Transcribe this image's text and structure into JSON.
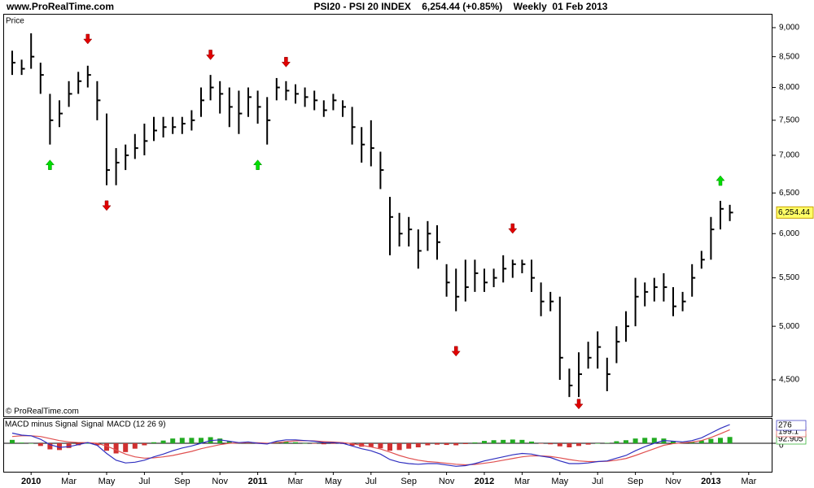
{
  "header": {
    "site": "www.ProRealTime.com",
    "title": "PSI20 - PSI 20 INDEX    6,254.44 (+0.85%)    Weekly  01 Feb 2013",
    "copyright": "© ProRealTime.com"
  },
  "chart_data": [
    {
      "type": "ohlc",
      "label": "Price",
      "log_scale": true,
      "color": "#000000",
      "categories": [
        null,
        null,
        "2010",
        null,
        null,
        null,
        "Mar",
        null,
        null,
        null,
        "May",
        null,
        null,
        null,
        "Jul",
        null,
        null,
        null,
        "Sep",
        null,
        null,
        null,
        "Nov",
        null,
        null,
        null,
        "2011",
        null,
        null,
        null,
        "Mar",
        null,
        null,
        null,
        "May",
        null,
        null,
        null,
        "Jul",
        null,
        null,
        null,
        "Sep",
        null,
        null,
        null,
        "Nov",
        null,
        null,
        null,
        "2012",
        null,
        null,
        null,
        "Mar",
        null,
        null,
        null,
        "May",
        null,
        null,
        null,
        "Jul",
        null,
        null,
        null,
        "Sep",
        null,
        null,
        null,
        "Nov",
        null,
        null,
        null,
        "2013",
        null,
        null,
        null,
        "Mar",
        null,
        null
      ],
      "high": [
        8600,
        8450,
        8900,
        8400,
        7900,
        7800,
        8100,
        8250,
        8350,
        8100,
        7600,
        7100,
        7150,
        7300,
        7450,
        7550,
        7550,
        7550,
        7550,
        7650,
        8000,
        8200,
        8100,
        8000,
        7950,
        8000,
        7950,
        7850,
        8150,
        8100,
        8050,
        8000,
        7950,
        7800,
        7900,
        7800,
        7700,
        7400,
        7500,
        7050,
        6450,
        6250,
        6200,
        6050,
        6150,
        6100,
        5650,
        5600,
        5700,
        5700,
        5600,
        5600,
        5750,
        5700,
        5700,
        5700,
        5450,
        5350,
        5300,
        4600,
        4750,
        4850,
        4950,
        4700,
        5000,
        5150,
        5500,
        5450,
        5500,
        5550,
        5400,
        5350,
        5650,
        5800,
        6200,
        6400,
        6350,
        null,
        null,
        null,
        null
      ],
      "low": [
        8200,
        8200,
        8300,
        7900,
        7150,
        7400,
        7700,
        7900,
        8000,
        7500,
        6600,
        6600,
        6800,
        6950,
        7000,
        7200,
        7250,
        7300,
        7300,
        7350,
        7550,
        7800,
        7600,
        7400,
        7300,
        7550,
        7450,
        7150,
        7800,
        7800,
        7750,
        7700,
        7650,
        7550,
        7650,
        7550,
        7150,
        6900,
        6850,
        6550,
        5750,
        5850,
        5850,
        5600,
        5800,
        5700,
        5300,
        5150,
        5250,
        5350,
        5350,
        5400,
        5450,
        5500,
        5550,
        5350,
        5100,
        5150,
        4500,
        4350,
        4350,
        4600,
        4600,
        4400,
        4650,
        4850,
        5000,
        5200,
        5250,
        5250,
        5100,
        5150,
        5300,
        5600,
        5700,
        6050,
        6150,
        null,
        null,
        null,
        null
      ],
      "close": [
        8400,
        8300,
        8500,
        8200,
        7500,
        7600,
        7900,
        8100,
        8200,
        7800,
        6800,
        6900,
        7000,
        7100,
        7200,
        7350,
        7400,
        7400,
        7450,
        7500,
        7800,
        8000,
        7900,
        7700,
        7600,
        7850,
        7700,
        7500,
        8000,
        7950,
        7900,
        7850,
        7800,
        7650,
        7800,
        7700,
        7400,
        7150,
        7100,
        6800,
        6200,
        6000,
        6050,
        5800,
        6000,
        5900,
        5450,
        5300,
        5400,
        5550,
        5450,
        5500,
        5600,
        5650,
        5650,
        5500,
        5250,
        5250,
        4700,
        4450,
        4550,
        4700,
        4800,
        4550,
        4850,
        5000,
        5300,
        5350,
        5400,
        5400,
        5200,
        5250,
        5500,
        5700,
        6050,
        6300,
        6254.44,
        null,
        null,
        null,
        null
      ],
      "sell_signals": {
        "color": "#e00000",
        "values": [
          null,
          null,
          null,
          null,
          null,
          null,
          null,
          null,
          8800,
          null,
          6340,
          null,
          null,
          null,
          null,
          null,
          null,
          null,
          null,
          null,
          null,
          8530,
          null,
          null,
          null,
          null,
          null,
          null,
          null,
          8410,
          null,
          null,
          null,
          null,
          null,
          null,
          null,
          null,
          null,
          null,
          null,
          null,
          null,
          null,
          null,
          null,
          null,
          4760,
          null,
          null,
          null,
          null,
          null,
          6060,
          null,
          null,
          null,
          null,
          null,
          null,
          4290,
          null,
          null,
          null,
          null,
          null,
          null,
          null,
          null,
          null,
          null,
          null,
          null,
          null,
          null,
          null,
          null,
          null,
          null,
          null,
          null
        ]
      },
      "buy_signals": {
        "color": "#00dd00",
        "values": [
          null,
          null,
          null,
          null,
          6870,
          null,
          null,
          null,
          null,
          null,
          null,
          null,
          null,
          null,
          null,
          null,
          null,
          null,
          null,
          null,
          null,
          null,
          null,
          null,
          null,
          null,
          6870,
          null,
          null,
          null,
          null,
          null,
          null,
          null,
          null,
          null,
          null,
          null,
          null,
          null,
          null,
          null,
          null,
          null,
          null,
          null,
          null,
          null,
          null,
          null,
          null,
          null,
          null,
          null,
          null,
          null,
          null,
          null,
          null,
          null,
          null,
          null,
          null,
          null,
          null,
          null,
          null,
          null,
          null,
          null,
          null,
          null,
          null,
          null,
          null,
          6660,
          null,
          null,
          null,
          null,
          null
        ]
      },
      "ylim": [
        4187,
        9233
      ],
      "yticks": [
        {
          "value": 4500,
          "label": "4,500"
        },
        {
          "value": 5000,
          "label": "5,000"
        },
        {
          "value": 5500,
          "label": "5,500"
        },
        {
          "value": 6000,
          "label": "6,000"
        },
        {
          "value": 6500,
          "label": "6,500"
        },
        {
          "value": 7000,
          "label": "7,000"
        },
        {
          "value": 7500,
          "label": "7,500"
        },
        {
          "value": 8000,
          "label": "8,000"
        },
        {
          "value": 8500,
          "label": "8,500"
        },
        {
          "value": 9000,
          "label": "9,000"
        }
      ],
      "last_price": {
        "value": 6254.44,
        "label": "6,254.44"
      }
    },
    {
      "type": "macd",
      "ylim": [
        -420,
        360
      ],
      "yticks": [
        0
      ],
      "series": [
        {
          "name": "MACD minus Signal",
          "color": "#22aa22",
          "kind": "histogram",
          "last_label": "92.905",
          "values": [
            50,
            10,
            0,
            -40,
            -90,
            -100,
            -70,
            -30,
            0,
            -30,
            -110,
            -150,
            -130,
            -80,
            -30,
            15,
            40,
            70,
            80,
            80,
            80,
            90,
            70,
            30,
            5,
            10,
            -8,
            -10,
            20,
            25,
            15,
            2,
            -5,
            -15,
            -8,
            -10,
            -35,
            -50,
            -55,
            -75,
            -110,
            -100,
            -80,
            -60,
            -30,
            -20,
            -25,
            -30,
            -12,
            12,
            35,
            45,
            50,
            55,
            50,
            25,
            -4,
            -15,
            -45,
            -60,
            -40,
            -20,
            0,
            6,
            30,
            45,
            70,
            80,
            80,
            70,
            35,
            15,
            22,
            40,
            65,
            80,
            92.905,
            null,
            null,
            null,
            null
          ]
        },
        {
          "name": "Signal",
          "color": "#e05050",
          "kind": "line",
          "last_label": "199.1",
          "values": [
            100,
            110,
            110,
            100,
            70,
            40,
            20,
            10,
            10,
            0,
            -40,
            -100,
            -160,
            -200,
            -220,
            -215,
            -200,
            -180,
            -150,
            -120,
            -80,
            -50,
            -20,
            0,
            5,
            10,
            8,
            0,
            10,
            25,
            35,
            38,
            35,
            25,
            18,
            10,
            -5,
            -30,
            -55,
            -85,
            -130,
            -180,
            -220,
            -250,
            -270,
            -280,
            -295,
            -310,
            -318,
            -312,
            -295,
            -275,
            -250,
            -225,
            -200,
            -185,
            -186,
            -195,
            -215,
            -240,
            -260,
            -270,
            -270,
            -266,
            -250,
            -225,
            -180,
            -130,
            -80,
            -30,
            -5,
            5,
            18,
            40,
            85,
            140,
            199.1,
            null,
            null,
            null,
            null
          ]
        },
        {
          "name": "MACD (12 26 9)",
          "color": "#3030c0",
          "kind": "line",
          "last_label": "276",
          "values": [
            150,
            120,
            110,
            60,
            -20,
            -60,
            -50,
            -20,
            10,
            -30,
            -150,
            -250,
            -290,
            -280,
            -250,
            -200,
            -160,
            -110,
            -70,
            -40,
            0,
            40,
            50,
            30,
            10,
            20,
            0,
            -10,
            30,
            50,
            50,
            40,
            30,
            10,
            10,
            0,
            -40,
            -80,
            -110,
            -160,
            -240,
            -280,
            -300,
            -310,
            -300,
            -300,
            -320,
            -340,
            -330,
            -300,
            -260,
            -230,
            -200,
            -170,
            -150,
            -160,
            -190,
            -210,
            -260,
            -300,
            -300,
            -290,
            -270,
            -260,
            -220,
            -180,
            -110,
            -50,
            0,
            40,
            30,
            20,
            40,
            80,
            150,
            220,
            276,
            null,
            null,
            null,
            null
          ]
        }
      ]
    }
  ]
}
